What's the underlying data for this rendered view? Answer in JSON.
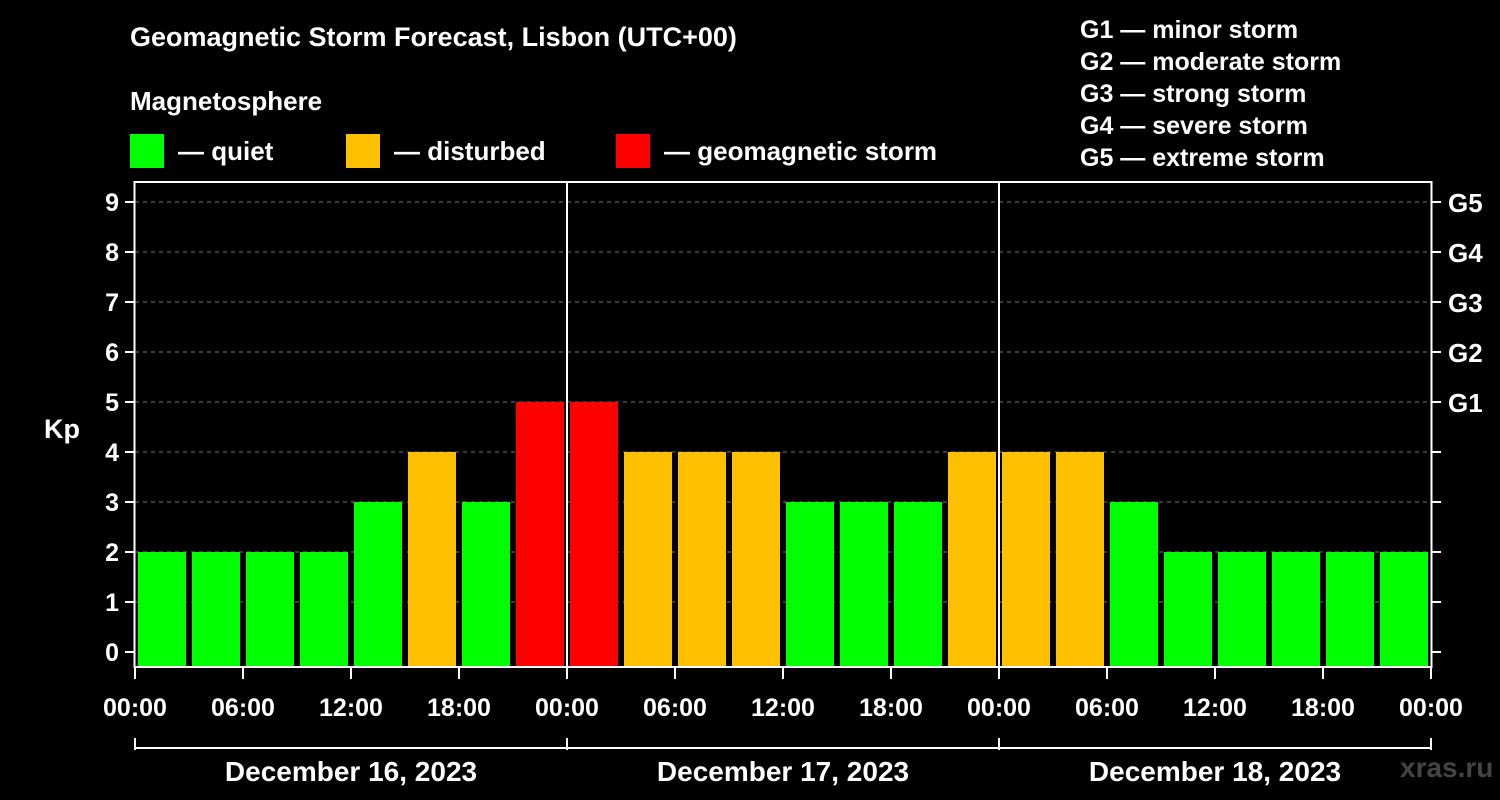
{
  "chart_data": {
    "type": "bar",
    "title": "Geomagnetic Storm Forecast, Lisbon (UTC+00)",
    "subtitle": "Magnetosphere",
    "ylabel": "Kp",
    "ylim": [
      0,
      9
    ],
    "yticks": [
      "0",
      "1",
      "2",
      "3",
      "4",
      "5",
      "6",
      "7",
      "8",
      "9"
    ],
    "g_ticks": [
      {
        "kp": 5,
        "label": "G1"
      },
      {
        "kp": 6,
        "label": "G2"
      },
      {
        "kp": 7,
        "label": "G3"
      },
      {
        "kp": 8,
        "label": "G4"
      },
      {
        "kp": 9,
        "label": "G5"
      }
    ],
    "xtick_labels": [
      "00:00",
      "06:00",
      "12:00",
      "18:00",
      "00:00",
      "06:00",
      "12:00",
      "18:00",
      "00:00",
      "06:00",
      "12:00",
      "18:00",
      "00:00"
    ],
    "days": [
      "December 16, 2023",
      "December 17, 2023",
      "December 18, 2023"
    ],
    "interval_hours": 3,
    "values": [
      2,
      2,
      2,
      2,
      3,
      4,
      3,
      5,
      5,
      4,
      4,
      4,
      3,
      3,
      3,
      4,
      4,
      4,
      3,
      2,
      2,
      2,
      2,
      2
    ],
    "status_by_kp": {
      "quiet_max": 3,
      "disturbed_max": 4
    },
    "colors": {
      "quiet": "#00ff00",
      "disturbed": "#ffc000",
      "storm": "#ff0000"
    },
    "legend": [
      {
        "key": "quiet",
        "label": "— quiet"
      },
      {
        "key": "disturbed",
        "label": "— disturbed"
      },
      {
        "key": "storm",
        "label": "— geomagnetic storm"
      }
    ],
    "g_legend": [
      "G1 — minor storm",
      "G2 — moderate storm",
      "G3 — strong storm",
      "G4 — severe storm",
      "G5 — extreme storm"
    ],
    "grid": true
  },
  "watermark": "xras.ru"
}
